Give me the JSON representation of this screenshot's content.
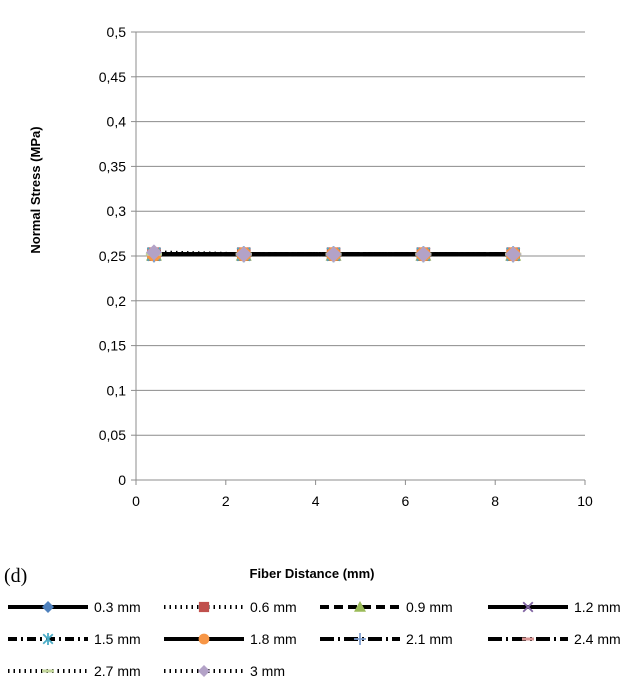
{
  "panel_label": "(d)",
  "chart_data": {
    "type": "line",
    "title": "",
    "xlabel": "Fiber Distance (mm)",
    "ylabel": "Normal Stress (MPa)",
    "xlim": [
      0,
      10
    ],
    "ylim": [
      0,
      0.5
    ],
    "xticks": [
      0,
      2,
      4,
      6,
      8,
      10
    ],
    "xtick_labels": [
      "0",
      "2",
      "4",
      "6",
      "8",
      "10"
    ],
    "yticks": [
      0,
      0.05,
      0.1,
      0.15,
      0.2,
      0.25,
      0.3,
      0.35,
      0.4,
      0.45,
      0.5
    ],
    "ytick_labels": [
      "0",
      "0,05",
      "0,1",
      "0,15",
      "0,2",
      "0,25",
      "0,3",
      "0,35",
      "0,4",
      "0,45",
      "0,5"
    ],
    "grid": "horizontal",
    "legend_position": "bottom",
    "x": [
      0.4,
      2.4,
      4.4,
      6.4,
      8.4
    ],
    "series": [
      {
        "name": "0.3 mm",
        "values": [
          0.252,
          0.252,
          0.252,
          0.252,
          0.252
        ],
        "marker": "diamond",
        "color": "#4f81bd",
        "line": "solid"
      },
      {
        "name": "0.6 mm",
        "values": [
          0.252,
          0.252,
          0.252,
          0.252,
          0.252
        ],
        "marker": "square",
        "color": "#c0504d",
        "line": "dotted"
      },
      {
        "name": "0.9 mm",
        "values": [
          0.252,
          0.252,
          0.252,
          0.252,
          0.252
        ],
        "marker": "triangle",
        "color": "#9bbb59",
        "line": "dashed"
      },
      {
        "name": "1.2 mm",
        "values": [
          0.252,
          0.252,
          0.252,
          0.252,
          0.252
        ],
        "marker": "x",
        "color": "#8064a2",
        "line": "solid"
      },
      {
        "name": "1.5 mm",
        "values": [
          0.252,
          0.252,
          0.252,
          0.252,
          0.252
        ],
        "marker": "star",
        "color": "#4bacc6",
        "line": "dashdot"
      },
      {
        "name": "1.8 mm",
        "values": [
          0.252,
          0.252,
          0.252,
          0.252,
          0.252
        ],
        "marker": "circle",
        "color": "#f79646",
        "line": "solid"
      },
      {
        "name": "2.1 mm",
        "values": [
          0.252,
          0.252,
          0.252,
          0.252,
          0.252
        ],
        "marker": "plus",
        "color": "#7f9fcf",
        "line": "longdashdot"
      },
      {
        "name": "2.4 mm",
        "values": [
          0.252,
          0.252,
          0.252,
          0.252,
          0.252
        ],
        "marker": "dash",
        "color": "#d99694",
        "line": "longdashdot"
      },
      {
        "name": "2.7 mm",
        "values": [
          0.252,
          0.252,
          0.252,
          0.252,
          0.252
        ],
        "marker": "dash",
        "color": "#c3d69b",
        "line": "dotted"
      },
      {
        "name": "3 mm",
        "values": [
          0.254,
          0.252,
          0.252,
          0.252,
          0.252
        ],
        "marker": "diamond",
        "color": "#b3a2c7",
        "line": "dotted"
      }
    ]
  }
}
